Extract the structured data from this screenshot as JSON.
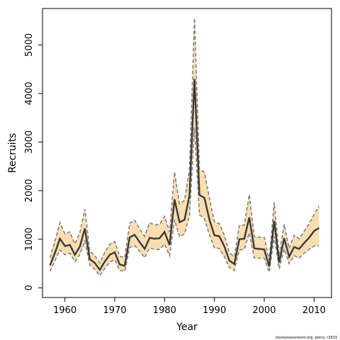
{
  "chart_data": {
    "type": "area",
    "title": "",
    "xlabel": "Year",
    "ylabel": "Recruits",
    "xlim": [
      1955.5,
      2013.5
    ],
    "ylim": [
      -200,
      5750
    ],
    "x_ticks": [
      1960,
      1970,
      1980,
      1990,
      2000,
      2010
    ],
    "y_ticks": [
      0,
      1000,
      2000,
      3000,
      4000,
      5000
    ],
    "grid": false,
    "credit": "stockassessment.org, plens, r2633",
    "colors": {
      "band": "#f8deb0",
      "estimate": "#3a3a3a",
      "bounds": "#808080"
    },
    "x": [
      1957,
      1958,
      1959,
      1960,
      1961,
      1962,
      1963,
      1964,
      1965,
      1966,
      1967,
      1968,
      1969,
      1970,
      1971,
      1972,
      1973,
      1974,
      1975,
      1976,
      1977,
      1978,
      1979,
      1980,
      1981,
      1982,
      1983,
      1984,
      1985,
      1986,
      1987,
      1988,
      1989,
      1990,
      1991,
      1992,
      1993,
      1994,
      1995,
      1996,
      1997,
      1998,
      1999,
      2000,
      2001,
      2002,
      2003,
      2004,
      2005,
      2006,
      2007,
      2008,
      2009,
      2010,
      2011
    ],
    "series": [
      {
        "values": [
          460,
          720,
          1010,
          860,
          880,
          680,
          850,
          1220,
          590,
          510,
          370,
          540,
          680,
          730,
          480,
          450,
          1040,
          1090,
          940,
          800,
          1030,
          1010,
          1020,
          1150,
          880,
          1820,
          1350,
          1400,
          1900,
          4300,
          1910,
          1850,
          1400,
          1080,
          1060,
          850,
          560,
          490,
          1000,
          1010,
          1450,
          810,
          800,
          790,
          440,
          1380,
          520,
          1020,
          640,
          840,
          800,
          920,
          1030,
          1170,
          1230
        ]
      },
      {
        "values": [
          340,
          560,
          780,
          680,
          710,
          540,
          690,
          960,
          470,
          380,
          250,
          400,
          530,
          580,
          360,
          340,
          830,
          870,
          750,
          620,
          820,
          790,
          790,
          900,
          660,
          1400,
          1050,
          1110,
          1480,
          3300,
          1500,
          1420,
          1090,
          820,
          810,
          640,
          420,
          360,
          780,
          790,
          1130,
          610,
          610,
          610,
          320,
          1060,
          390,
          800,
          500,
          660,
          610,
          710,
          790,
          860,
          860
        ]
      },
      {
        "values": [
          620,
          960,
          1340,
          1110,
          1150,
          900,
          1140,
          1620,
          760,
          660,
          510,
          730,
          900,
          950,
          650,
          620,
          1330,
          1390,
          1210,
          1060,
          1340,
          1290,
          1310,
          1470,
          1150,
          2380,
          1730,
          1800,
          2440,
          5550,
          2440,
          2380,
          1840,
          1360,
          1320,
          1080,
          720,
          640,
          1280,
          1290,
          1920,
          1050,
          1040,
          1040,
          570,
          1760,
          660,
          1310,
          810,
          1080,
          1010,
          1160,
          1320,
          1510,
          1680
        ]
      }
    ]
  }
}
